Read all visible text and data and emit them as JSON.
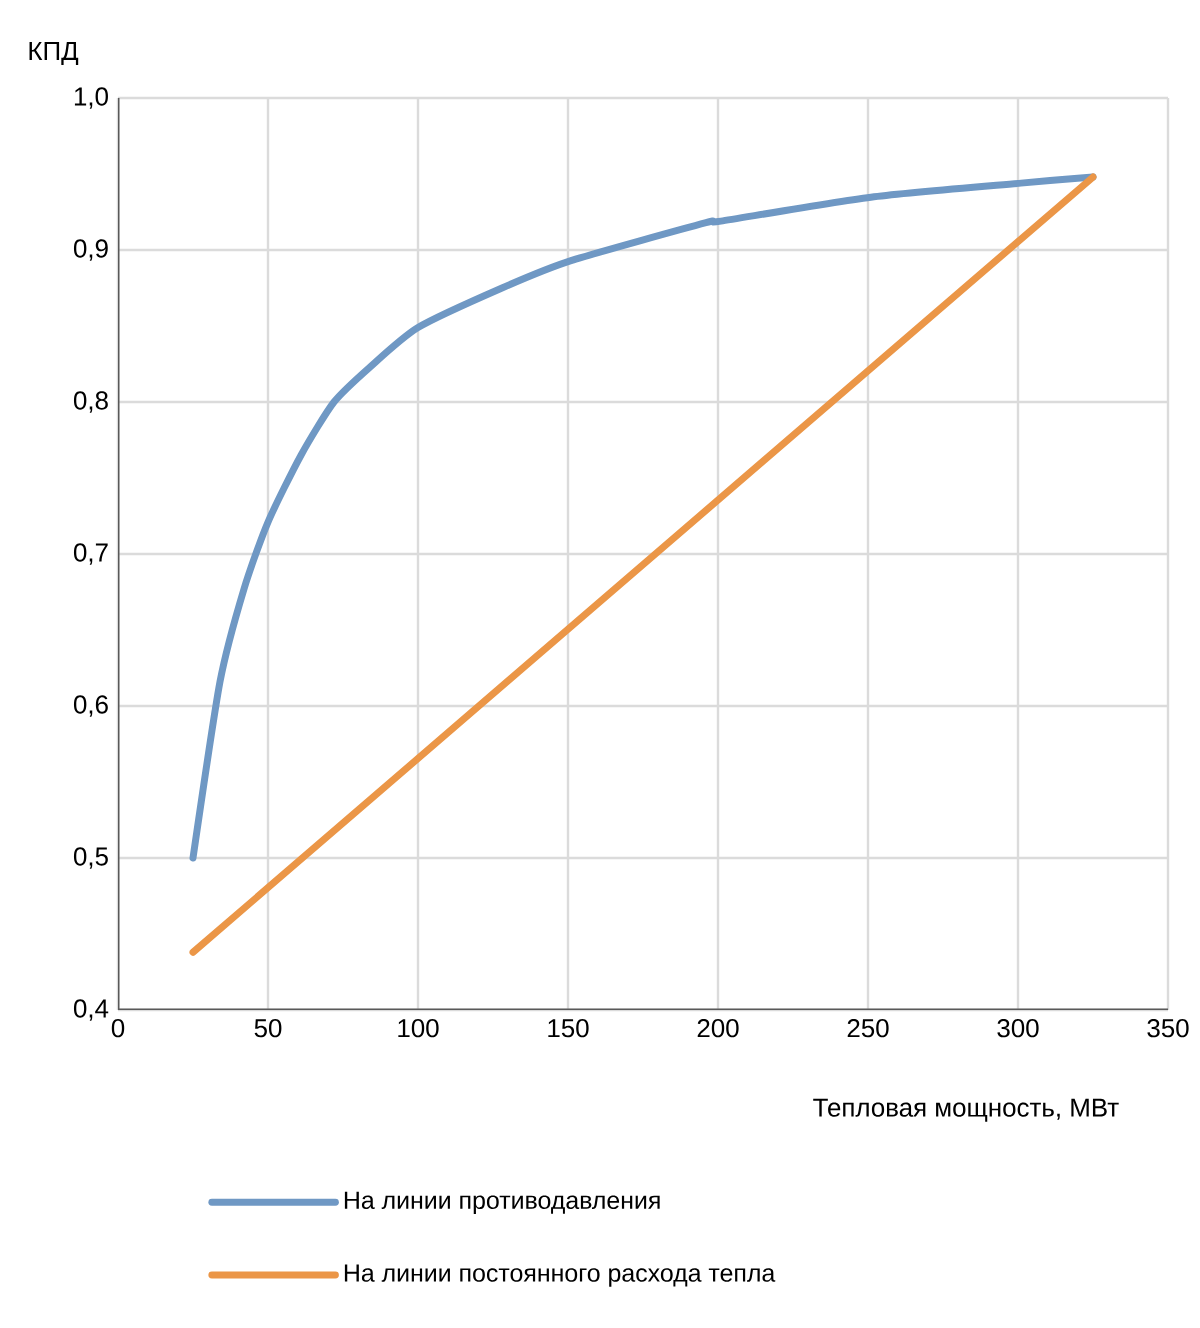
{
  "chart_data": {
    "type": "line",
    "xlabel": "Тепловая мощность, МВт",
    "ylabel": "КПД",
    "xlim": [
      0,
      350
    ],
    "xticks": [
      0,
      50,
      100,
      150,
      200,
      250,
      300,
      350
    ],
    "ylim": [
      0.4,
      1.0
    ],
    "yticks": [
      {
        "value": 0.4,
        "label": "0,4"
      },
      {
        "value": 0.5,
        "label": "0,5"
      },
      {
        "value": 0.6,
        "label": "0,6"
      },
      {
        "value": 0.7,
        "label": "0,7"
      },
      {
        "value": 0.8,
        "label": "0,8"
      },
      {
        "value": 0.9,
        "label": "0,9"
      },
      {
        "value": 1.0,
        "label": "1,0"
      }
    ],
    "grid": true,
    "legend": "bottom",
    "marker": "none",
    "line_style": "solid",
    "series": [
      {
        "name": "На линии противодавления",
        "color": "#6f98c4",
        "x": [
          25,
          34,
          42,
          50,
          61,
          72,
          84,
          100,
          128,
          151,
          196,
          201,
          252,
          301,
          325
        ],
        "values": [
          0.5,
          0.616,
          0.677,
          0.721,
          0.765,
          0.8,
          0.823,
          0.849,
          0.875,
          0.893,
          0.918,
          0.919,
          0.935,
          0.944,
          0.948
        ]
      },
      {
        "name": "На линии постоянного расхода тепла",
        "color": "#eb9647",
        "x": [
          25,
          325
        ],
        "values": [
          0.438,
          0.948
        ]
      }
    ]
  }
}
